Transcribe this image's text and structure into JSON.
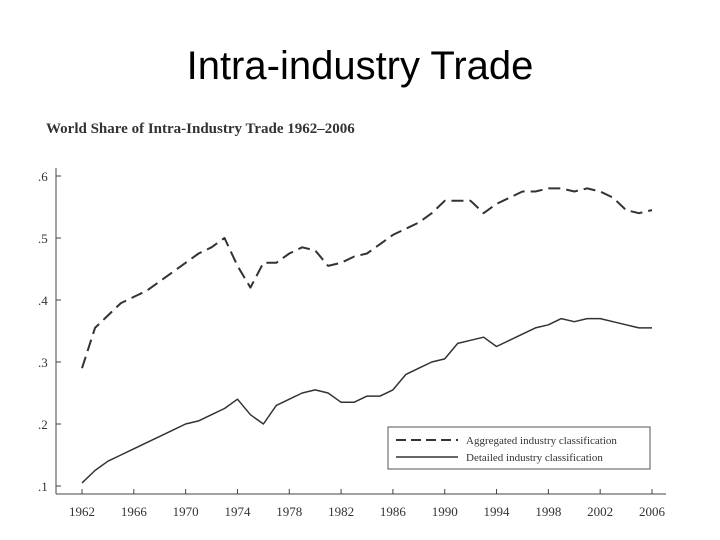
{
  "slide": {
    "title": "Intra-industry Trade"
  },
  "chart_data": {
    "type": "line",
    "title": "World Share of Intra-Industry Trade 1962–2006",
    "xlabel": "",
    "ylabel": "",
    "xlim": [
      1962,
      2006
    ],
    "ylim": [
      0.1,
      0.6
    ],
    "x_ticks": [
      1962,
      1966,
      1970,
      1974,
      1978,
      1982,
      1986,
      1990,
      1994,
      1998,
      2002,
      2006
    ],
    "x_tick_labels": [
      "1962",
      "1966",
      "1970",
      "1974",
      "1978",
      "1982",
      "1986",
      "1990",
      "1994",
      "1998",
      "2002",
      "2006"
    ],
    "y_ticks": [
      0.1,
      0.2,
      0.3,
      0.4,
      0.5,
      0.6
    ],
    "y_tick_labels": [
      ".1",
      ".2",
      ".3",
      ".4",
      ".5",
      ".6"
    ],
    "legend_position": "bottom-right",
    "colors": {
      "line": "#333333",
      "axis": "#444444"
    },
    "series": [
      {
        "name": "Aggregated industry classification",
        "style": "dashed",
        "x": [
          1962,
          1963,
          1964,
          1965,
          1966,
          1967,
          1968,
          1969,
          1970,
          1971,
          1972,
          1973,
          1974,
          1975,
          1976,
          1977,
          1978,
          1979,
          1980,
          1981,
          1982,
          1983,
          1984,
          1985,
          1986,
          1987,
          1988,
          1989,
          1990,
          1991,
          1992,
          1993,
          1994,
          1995,
          1996,
          1997,
          1998,
          1999,
          2000,
          2001,
          2002,
          2003,
          2004,
          2005,
          2006
        ],
        "values": [
          0.29,
          0.355,
          0.375,
          0.395,
          0.405,
          0.415,
          0.43,
          0.445,
          0.46,
          0.475,
          0.485,
          0.5,
          0.455,
          0.42,
          0.46,
          0.46,
          0.475,
          0.485,
          0.48,
          0.455,
          0.46,
          0.47,
          0.475,
          0.49,
          0.505,
          0.515,
          0.525,
          0.54,
          0.56,
          0.56,
          0.56,
          0.54,
          0.555,
          0.565,
          0.575,
          0.575,
          0.58,
          0.58,
          0.575,
          0.58,
          0.575,
          0.565,
          0.545,
          0.54,
          0.545
        ]
      },
      {
        "name": "Detailed industry classification",
        "style": "solid",
        "x": [
          1962,
          1963,
          1964,
          1965,
          1966,
          1967,
          1968,
          1969,
          1970,
          1971,
          1972,
          1973,
          1974,
          1975,
          1976,
          1977,
          1978,
          1979,
          1980,
          1981,
          1982,
          1983,
          1984,
          1985,
          1986,
          1987,
          1988,
          1989,
          1990,
          1991,
          1992,
          1993,
          1994,
          1995,
          1996,
          1997,
          1998,
          1999,
          2000,
          2001,
          2002,
          2003,
          2004,
          2005,
          2006
        ],
        "values": [
          0.105,
          0.125,
          0.14,
          0.15,
          0.16,
          0.17,
          0.18,
          0.19,
          0.2,
          0.205,
          0.215,
          0.225,
          0.24,
          0.215,
          0.2,
          0.23,
          0.24,
          0.25,
          0.255,
          0.25,
          0.235,
          0.235,
          0.245,
          0.245,
          0.255,
          0.28,
          0.29,
          0.3,
          0.305,
          0.33,
          0.335,
          0.34,
          0.325,
          0.335,
          0.345,
          0.355,
          0.36,
          0.37,
          0.365,
          0.37,
          0.37,
          0.365,
          0.36,
          0.355,
          0.355
        ]
      }
    ]
  }
}
